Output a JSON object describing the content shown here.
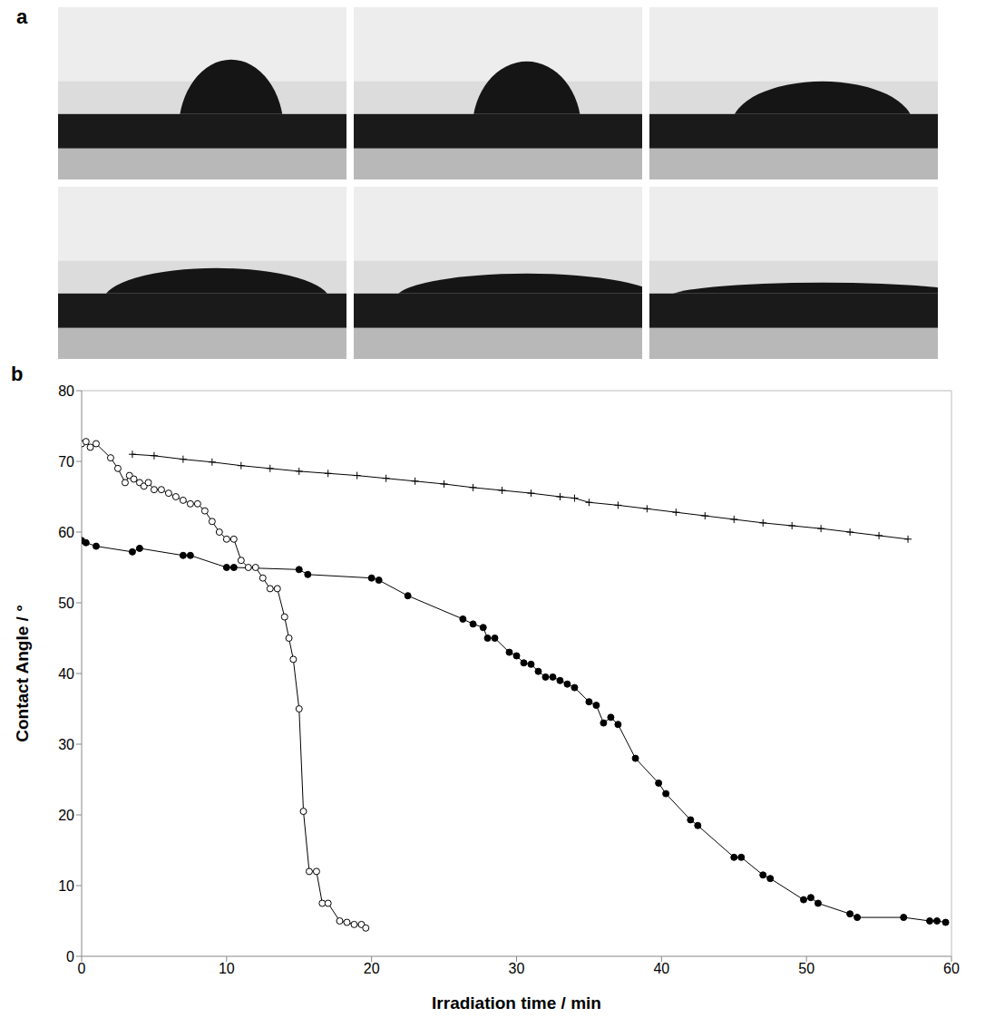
{
  "panel_labels": [
    "a",
    "b"
  ],
  "chart_data": {
    "type": "line",
    "x_label": "Irradiation time / min",
    "y_label": "Contact Angle / °",
    "xlim": [
      0,
      60
    ],
    "xticks": [
      0,
      10,
      20,
      30,
      40,
      50,
      60
    ],
    "ylim": [
      0,
      80
    ],
    "yticks": [
      0,
      10,
      20,
      30,
      40,
      50,
      60,
      70,
      80
    ],
    "grid": false,
    "series": [
      {
        "color": "#000000",
        "marker": "circle-open",
        "x": [
          0,
          0.3,
          0.6,
          1,
          2,
          2.5,
          3,
          3.3,
          3.6,
          4,
          4.3,
          4.6,
          5,
          5.5,
          6,
          6.5,
          7,
          7.5,
          8,
          8.5,
          9,
          9.5,
          10,
          10.5,
          11,
          11.5,
          12,
          12.5,
          13,
          13.5,
          14,
          14.3,
          14.6,
          15,
          15.3,
          15.7,
          16.2,
          16.6,
          17,
          17.8,
          18.3,
          18.8,
          19.3,
          19.6
        ],
        "values": [
          72.5,
          72.8,
          72,
          72.5,
          70.5,
          69,
          67,
          68,
          67.5,
          67,
          66.5,
          67,
          66,
          66,
          65.5,
          65,
          64.5,
          64,
          64,
          63,
          61.5,
          60,
          59,
          59,
          56,
          55,
          55,
          53.5,
          52,
          52,
          48,
          45,
          42,
          35,
          20.5,
          12,
          12,
          7.5,
          7.5,
          5,
          4.8,
          4.5,
          4.5,
          4
        ]
      },
      {
        "color": "#000000",
        "marker": "circle",
        "x": [
          0,
          0.3,
          1,
          3.5,
          4,
          7,
          7.5,
          10,
          10.5,
          15,
          15.6,
          20,
          20.5,
          22.5,
          26.3,
          27,
          27.7,
          28,
          28.5,
          29.5,
          30,
          30.5,
          31,
          31.5,
          32,
          32.5,
          33,
          33.5,
          34,
          35,
          35.5,
          36,
          36.5,
          37,
          38.2,
          39.8,
          40.3,
          42,
          42.5,
          45,
          45.5,
          47,
          47.5,
          49.8,
          50.3,
          50.8,
          53,
          53.5,
          56.7,
          58.5,
          59,
          59.6
        ],
        "values": [
          58.8,
          58.5,
          58,
          57.2,
          57.7,
          56.7,
          56.7,
          55,
          55,
          54.7,
          54,
          53.5,
          53.2,
          51,
          47.7,
          47,
          46.5,
          45,
          45,
          43,
          42.5,
          41.5,
          41.3,
          40.3,
          39.5,
          39.5,
          39,
          38.5,
          38,
          36,
          35.5,
          33,
          33.8,
          32.8,
          28,
          24.5,
          23,
          19.3,
          18.5,
          14,
          14,
          11.5,
          11,
          8,
          8.3,
          7.5,
          6,
          5.5,
          5.5,
          5,
          5,
          4.8
        ]
      },
      {
        "color": "#000000",
        "marker": "plus",
        "x": [
          3.5,
          5,
          7,
          9,
          11,
          13,
          15,
          17,
          19,
          21,
          23,
          25,
          27,
          29,
          31,
          33,
          34,
          35,
          37,
          39,
          41,
          43,
          45,
          47,
          49,
          51,
          53,
          55,
          57
        ],
        "values": [
          71,
          70.8,
          70.3,
          69.9,
          69.4,
          69,
          68.6,
          68.3,
          68,
          67.6,
          67.2,
          66.8,
          66.3,
          65.9,
          65.5,
          65,
          64.8,
          64.2,
          63.8,
          63.3,
          62.8,
          62.3,
          61.8,
          61.3,
          60.9,
          60.5,
          60,
          59.5,
          59
        ]
      }
    ]
  }
}
